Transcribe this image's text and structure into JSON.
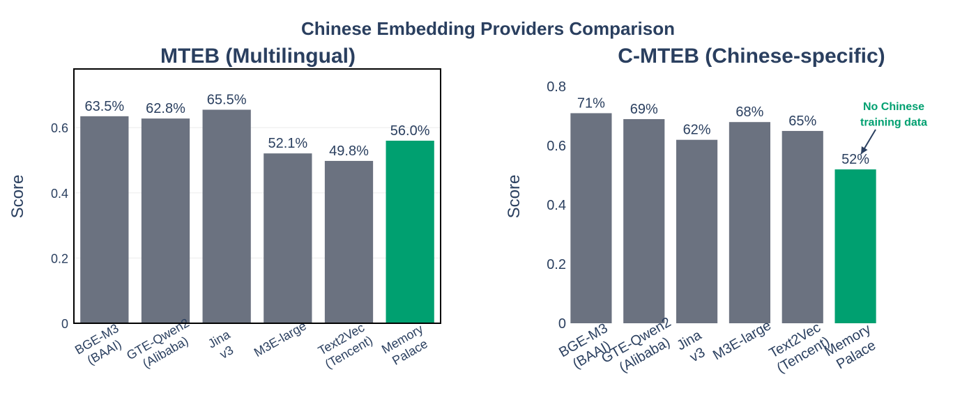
{
  "figure_title": "Chinese Embedding Providers Comparison",
  "colors": {
    "default": "#6b7280",
    "highlight": "#00a070",
    "text": "#2a3f5f",
    "annotation": "#00a070"
  },
  "chart_data": [
    {
      "type": "bar",
      "title": "MTEB (Multilingual)",
      "ylabel": "Score",
      "xlabel": "",
      "ylim": [
        0,
        0.78
      ],
      "yticks": [
        0,
        0.2,
        0.4,
        0.6
      ],
      "ytick_labels": [
        "0",
        "0.2",
        "0.4",
        "0.6"
      ],
      "frame": true,
      "grid": true,
      "categories": [
        [
          "BGE-M3",
          "(BAAI)"
        ],
        [
          "GTE-Qwen2",
          "(Alibaba)"
        ],
        [
          "Jina",
          "v3"
        ],
        [
          "M3E-large"
        ],
        [
          "Text2Vec",
          "(Tencent)"
        ],
        [
          "Memory",
          "Palace"
        ]
      ],
      "values": [
        0.635,
        0.628,
        0.655,
        0.521,
        0.498,
        0.56
      ],
      "data_labels": [
        "63.5%",
        "62.8%",
        "65.5%",
        "52.1%",
        "49.8%",
        "56.0%"
      ],
      "highlight_index": 5
    },
    {
      "type": "bar",
      "title": "C-MTEB (Chinese-specific)",
      "ylabel": "Score",
      "xlabel": "",
      "ylim": [
        0,
        0.81
      ],
      "yticks": [
        0,
        0.2,
        0.4,
        0.6,
        0.8
      ],
      "ytick_labels": [
        "0",
        "0.2",
        "0.4",
        "0.6",
        "0.8"
      ],
      "frame": false,
      "grid": false,
      "categories": [
        [
          "BGE-M3",
          "(BAAI)"
        ],
        [
          "GTE-Qwen2",
          "(Alibaba)"
        ],
        [
          "Jina",
          "v3"
        ],
        [
          "M3E-large"
        ],
        [
          "Text2Vec",
          "(Tencent)"
        ],
        [
          "Memory",
          "Palace"
        ]
      ],
      "values": [
        0.71,
        0.69,
        0.62,
        0.68,
        0.65,
        0.52
      ],
      "data_labels": [
        "71%",
        "69%",
        "62%",
        "68%",
        "65%",
        "52%"
      ],
      "highlight_index": 5,
      "annotation": {
        "text": [
          "No Chinese",
          "training data"
        ],
        "target_index": 5
      }
    }
  ]
}
